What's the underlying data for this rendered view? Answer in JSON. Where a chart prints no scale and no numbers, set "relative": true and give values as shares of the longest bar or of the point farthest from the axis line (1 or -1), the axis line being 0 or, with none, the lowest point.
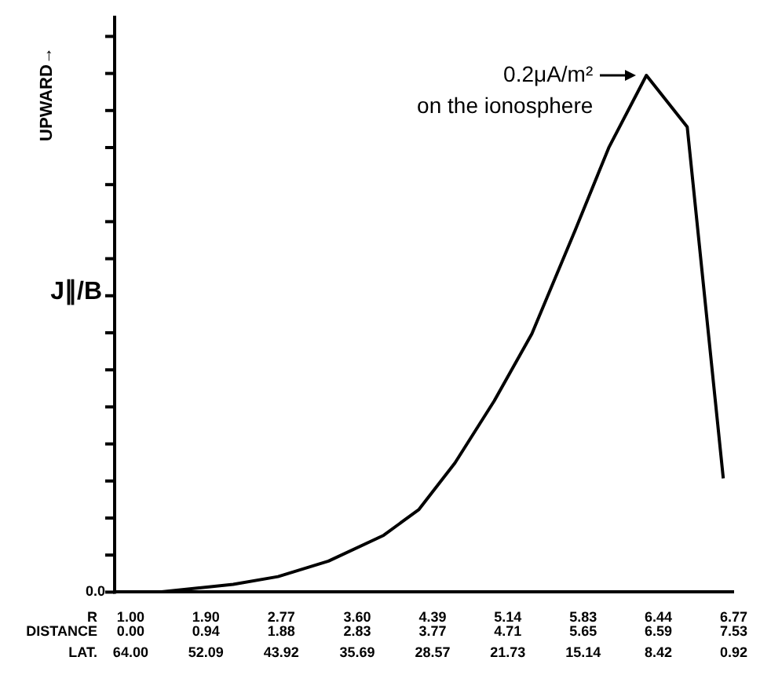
{
  "chart_data": {
    "type": "line",
    "relative": true,
    "ylabel": "UPWARD→",
    "xlabel": "DISTANCE",
    "x": [
      0.34,
      1.28,
      1.84,
      2.47,
      3.16,
      3.6,
      4.05,
      4.54,
      5.01,
      5.55,
      5.97,
      6.44,
      6.95,
      7.4
    ],
    "values": [
      0,
      0.015,
      0.03,
      0.06,
      0.11,
      0.16,
      0.25,
      0.37,
      0.5,
      0.7,
      0.86,
      1,
      0.9,
      0.22
    ],
    "color": "#000000",
    "marker": "none",
    "line_style": "solid",
    "xlim": [
      -0.2,
      7.53
    ],
    "xticks": [
      {
        "value": 0,
        "label": "0.00"
      },
      0.94,
      1.88,
      2.83,
      3.77,
      4.71,
      5.65,
      6.59,
      7.53
    ],
    "annotations": [
      "J∥/B",
      "0.0",
      "R 1.00 1.90 2.77 3.60 4.39 5.14 5.83 6.44 6.77",
      "LAT. 64.00 52.09 43.92 35.69 28.57 21.73 15.14 8.42 0.92",
      {
        "text": "0.2μA/m²\non the ionosphere",
        "x": 6.44,
        "y": 1
      }
    ],
    "grid": false,
    "legend": false
  }
}
